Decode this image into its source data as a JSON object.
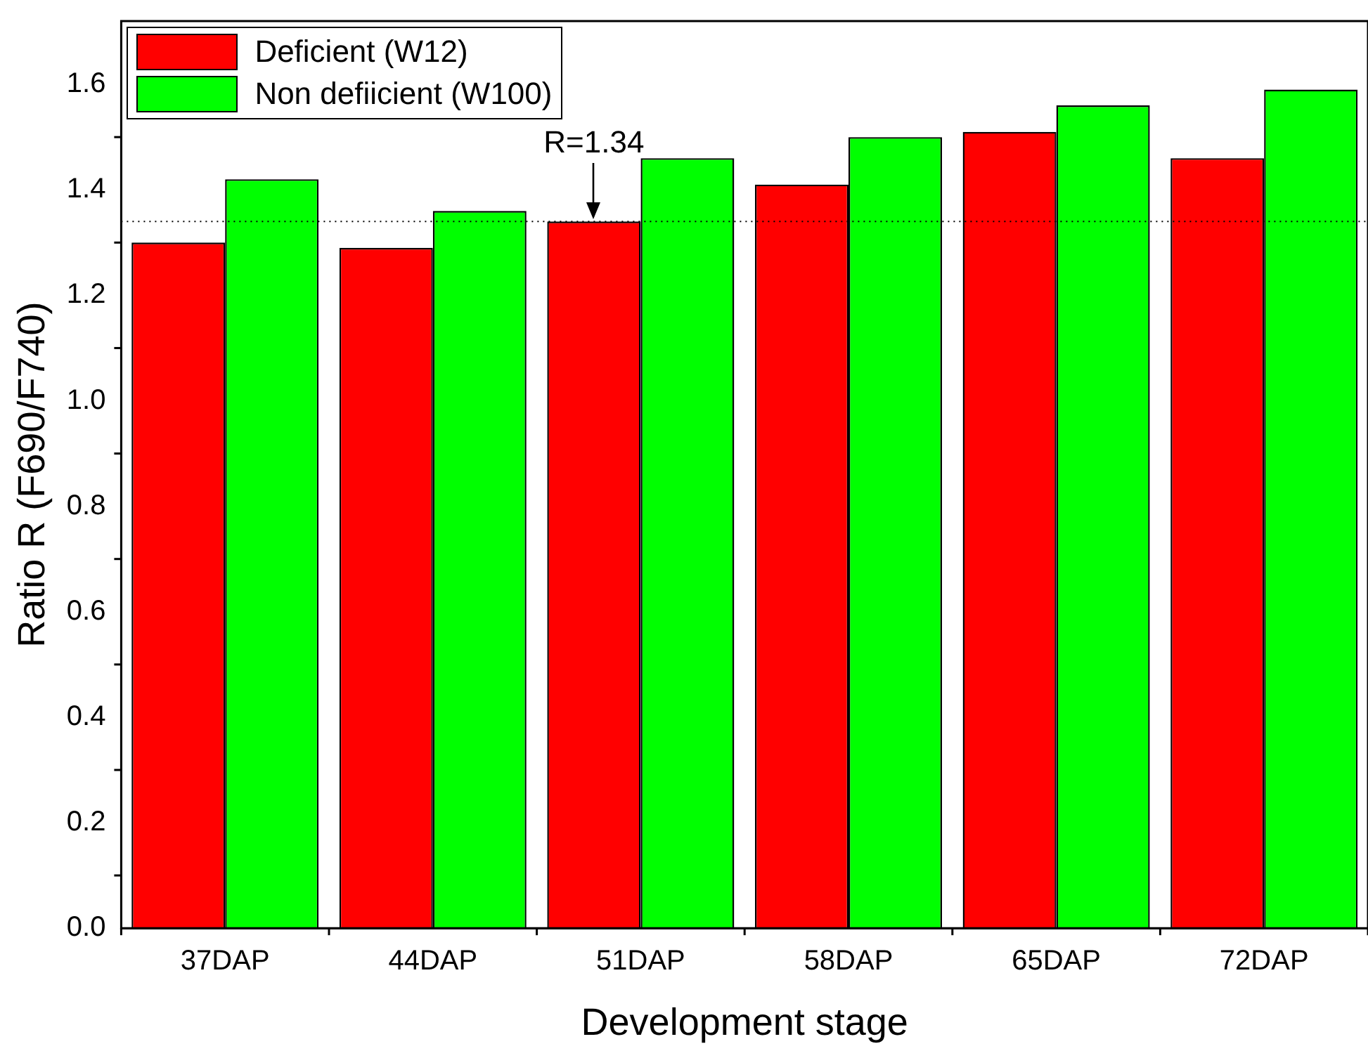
{
  "chart_data": {
    "type": "bar",
    "xlabel": "Development stage",
    "ylabel": "Ratio R (F690/F740)",
    "categories": [
      "37DAP",
      "44DAP",
      "51DAP",
      "58DAP",
      "65DAP",
      "72DAP"
    ],
    "series": [
      {
        "name": "Deficient (W12)",
        "color": "#ff0000",
        "values": [
          1.3,
          1.29,
          1.34,
          1.41,
          1.51,
          1.46
        ]
      },
      {
        "name": "Non defiicient (W100)",
        "color": "#00ff00",
        "values": [
          1.42,
          1.36,
          1.46,
          1.5,
          1.56,
          1.59
        ]
      }
    ],
    "ylim": [
      0,
      1.72
    ],
    "yticks": [
      {
        "value": 0,
        "label": "0.0"
      },
      {
        "value": 0.2,
        "label": "0.2"
      },
      {
        "value": 0.4,
        "label": "0.4"
      },
      {
        "value": 0.6,
        "label": "0.6"
      },
      {
        "value": 0.8,
        "label": "0.8"
      },
      {
        "value": 1,
        "label": "1.0"
      },
      {
        "value": 1.2,
        "label": "1.2"
      },
      {
        "value": 1.4,
        "label": "1.4"
      },
      {
        "value": 1.6,
        "label": "1.6"
      }
    ],
    "ref_lines": [
      {
        "axis": "y",
        "value": 1.34,
        "color": "#000000",
        "line_style": "dotted"
      }
    ],
    "annotations": [
      {
        "text": "R=1.34",
        "x": "51DAP",
        "y": 1.34
      }
    ],
    "legend": "top left",
    "grid": false
  }
}
